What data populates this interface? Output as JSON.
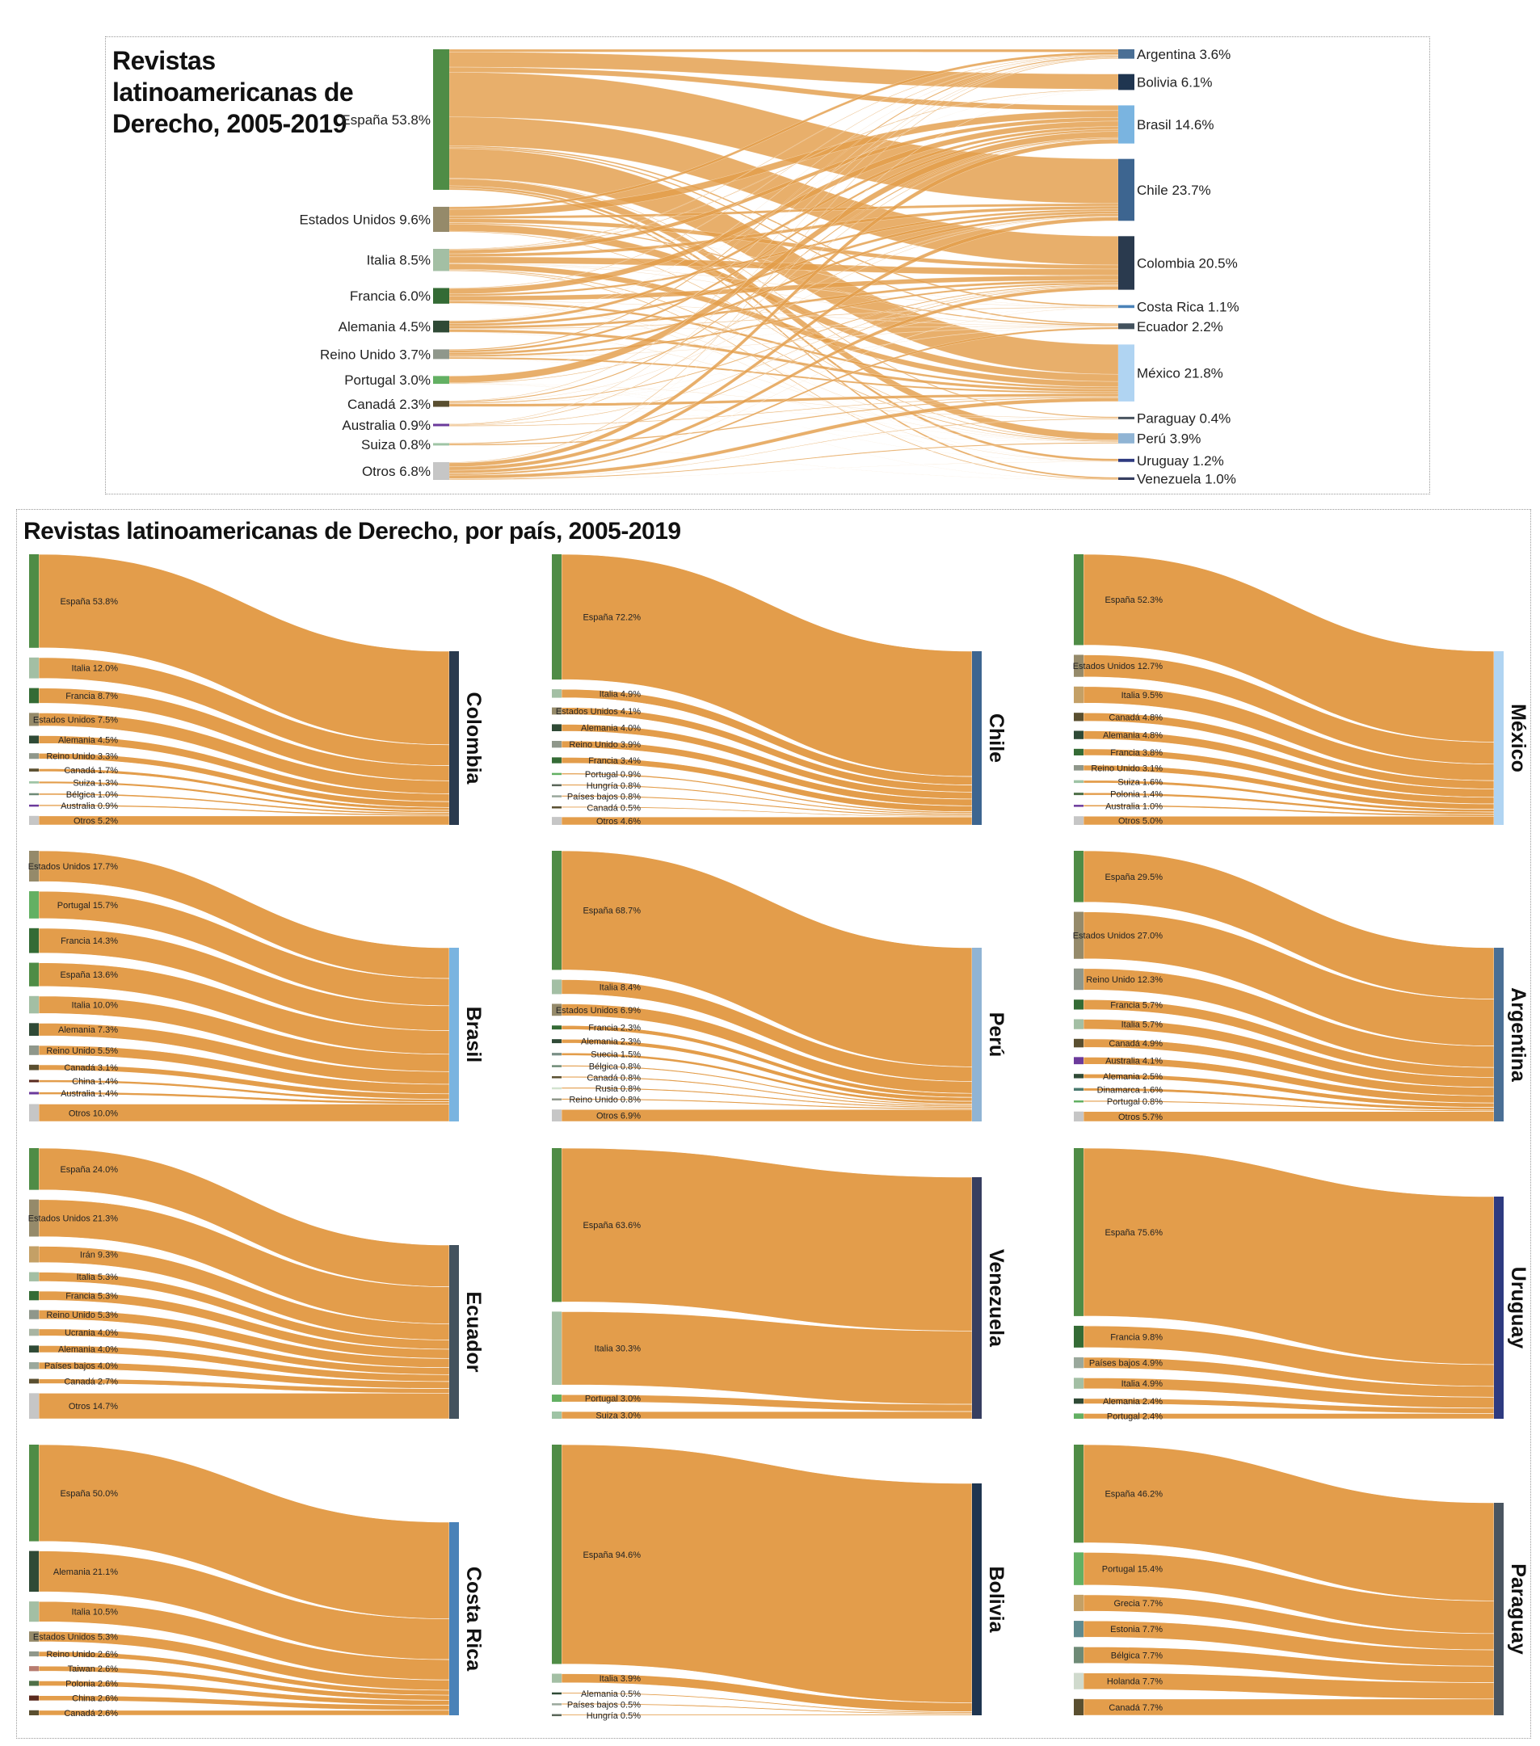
{
  "overview": {
    "title": "Revistas latinoamericanas de Derecho, 2005-2019",
    "sources": [
      {
        "name": "España",
        "value": 53.8
      },
      {
        "name": "Estados Unidos",
        "value": 9.6
      },
      {
        "name": "Italia",
        "value": 8.5
      },
      {
        "name": "Francia",
        "value": 6.0
      },
      {
        "name": "Alemania",
        "value": 4.5
      },
      {
        "name": "Reino Unido",
        "value": 3.7
      },
      {
        "name": "Portugal",
        "value": 3.0
      },
      {
        "name": "Canadá",
        "value": 2.3
      },
      {
        "name": "Australia",
        "value": 0.9
      },
      {
        "name": "Suiza",
        "value": 0.8
      },
      {
        "name": "Otros",
        "value": 6.8
      }
    ],
    "targets": [
      {
        "name": "Argentina",
        "value": 3.6
      },
      {
        "name": "Bolivia",
        "value": 6.1
      },
      {
        "name": "Brasil",
        "value": 14.6
      },
      {
        "name": "Chile",
        "value": 23.7
      },
      {
        "name": "Colombia",
        "value": 20.5
      },
      {
        "name": "Costa Rica",
        "value": 1.1
      },
      {
        "name": "Ecuador",
        "value": 2.2
      },
      {
        "name": "México",
        "value": 21.8
      },
      {
        "name": "Paraguay",
        "value": 0.4
      },
      {
        "name": "Perú",
        "value": 3.9
      },
      {
        "name": "Uruguay",
        "value": 1.2
      },
      {
        "name": "Venezuela",
        "value": 1.0
      }
    ]
  },
  "grid_title": "Revistas latinoamericanas de Derecho, por país, 2005-2019",
  "link_color": "#e39d4b",
  "source_colors": {
    "España": "#4f8c46",
    "Estados Unidos": "#958a6a",
    "Italia": "#a3bfa4",
    "Francia": "#346b35",
    "Alemania": "#2f4a36",
    "Reino Unido": "#8f978b",
    "Portugal": "#63b063",
    "Canadá": "#5a4f30",
    "Australia": "#6b3a9b",
    "Suiza": "#9fc4a5",
    "Otros": "#c6c6c6",
    "Bélgica": "#6e8a76",
    "Hungría": "#5a6659",
    "Países bajos": "#9aa89c",
    "Polonia": "#4f7048",
    "China": "#5a2a1e",
    "Suecia": "#7a8f86",
    "Rusia": "#d3e3cf",
    "Dinamarca": "#4b7a70",
    "Irán": "#c4a066",
    "Ucrania": "#a8b4a2",
    "Taiwan": "#b77c70",
    "Grecia": "#c4a066",
    "Estonia": "#5f8a8e",
    "Holanda": "#d0dacd"
  },
  "target_colors": {
    "Argentina": "#4a6f95",
    "Bolivia": "#1f3550",
    "Brasil": "#7ab4e0",
    "Chile": "#3d6590",
    "Colombia": "#2a3a4e",
    "Costa Rica": "#4a82b8",
    "Ecuador": "#43525e",
    "México": "#b0d4f2",
    "Paraguay": "#4a5560",
    "Perú": "#90b4d4",
    "Uruguay": "#2e3a80",
    "Venezuela": "#363e60"
  },
  "countries": [
    {
      "name": "Colombia",
      "sources": [
        {
          "name": "España",
          "value": 53.8
        },
        {
          "name": "Italia",
          "value": 12.0
        },
        {
          "name": "Francia",
          "value": 8.7
        },
        {
          "name": "Estados Unidos",
          "value": 7.5
        },
        {
          "name": "Alemania",
          "value": 4.5
        },
        {
          "name": "Reino Unido",
          "value": 3.3
        },
        {
          "name": "Canadá",
          "value": 1.7
        },
        {
          "name": "Suiza",
          "value": 1.3
        },
        {
          "name": "Bélgica",
          "value": 1.0
        },
        {
          "name": "Australia",
          "value": 0.9
        },
        {
          "name": "Otros",
          "value": 5.2
        }
      ]
    },
    {
      "name": "Chile",
      "sources": [
        {
          "name": "España",
          "value": 72.2
        },
        {
          "name": "Italia",
          "value": 4.9
        },
        {
          "name": "Estados Unidos",
          "value": 4.1
        },
        {
          "name": "Alemania",
          "value": 4.0
        },
        {
          "name": "Reino Unido",
          "value": 3.9
        },
        {
          "name": "Francia",
          "value": 3.4
        },
        {
          "name": "Portugal",
          "value": 0.9
        },
        {
          "name": "Hungría",
          "value": 0.8
        },
        {
          "name": "Países bajos",
          "value": 0.8
        },
        {
          "name": "Canadá",
          "value": 0.5
        },
        {
          "name": "Otros",
          "value": 4.6
        }
      ]
    },
    {
      "name": "México",
      "sources": [
        {
          "name": "España",
          "value": 52.3
        },
        {
          "name": "Estados Unidos",
          "value": 12.7
        },
        {
          "name": "Italia",
          "value": 9.5,
          "color": "#c4a066"
        },
        {
          "name": "Canadá",
          "value": 4.8
        },
        {
          "name": "Alemania",
          "value": 4.8
        },
        {
          "name": "Francia",
          "value": 3.8
        },
        {
          "name": "Reino Unido",
          "value": 3.1
        },
        {
          "name": "Suiza",
          "value": 1.6
        },
        {
          "name": "Polonia",
          "value": 1.4
        },
        {
          "name": "Australia",
          "value": 1.0
        },
        {
          "name": "Otros",
          "value": 5.0
        }
      ]
    },
    {
      "name": "Brasil",
      "sources": [
        {
          "name": "Estados Unidos",
          "value": 17.7
        },
        {
          "name": "Portugal",
          "value": 15.7
        },
        {
          "name": "Francia",
          "value": 14.3
        },
        {
          "name": "España",
          "value": 13.6
        },
        {
          "name": "Italia",
          "value": 10.0
        },
        {
          "name": "Alemania",
          "value": 7.3
        },
        {
          "name": "Reino Unido",
          "value": 5.5
        },
        {
          "name": "Canadá",
          "value": 3.1
        },
        {
          "name": "China",
          "value": 1.4
        },
        {
          "name": "Australia",
          "value": 1.4
        },
        {
          "name": "Otros",
          "value": 10.0
        }
      ]
    },
    {
      "name": "Perú",
      "sources": [
        {
          "name": "España",
          "value": 68.7
        },
        {
          "name": "Italia",
          "value": 8.4
        },
        {
          "name": "Estados Unidos",
          "value": 6.9
        },
        {
          "name": "Francia",
          "value": 2.3
        },
        {
          "name": "Alemania",
          "value": 2.3
        },
        {
          "name": "Suecia",
          "value": 1.5
        },
        {
          "name": "Bélgica",
          "value": 0.8
        },
        {
          "name": "Canadá",
          "value": 0.8
        },
        {
          "name": "Rusia",
          "value": 0.8
        },
        {
          "name": "Reino Unido",
          "value": 0.8
        },
        {
          "name": "Otros",
          "value": 6.9
        }
      ]
    },
    {
      "name": "Argentina",
      "sources": [
        {
          "name": "España",
          "value": 29.5
        },
        {
          "name": "Estados Unidos",
          "value": 27.0
        },
        {
          "name": "Reino Unido",
          "value": 12.3
        },
        {
          "name": "Francia",
          "value": 5.7
        },
        {
          "name": "Italia",
          "value": 5.7
        },
        {
          "name": "Canadá",
          "value": 4.9
        },
        {
          "name": "Australia",
          "value": 4.1
        },
        {
          "name": "Alemania",
          "value": 2.5
        },
        {
          "name": "Dinamarca",
          "value": 1.6
        },
        {
          "name": "Portugal",
          "value": 0.8
        },
        {
          "name": "Otros",
          "value": 5.7
        }
      ]
    },
    {
      "name": "Ecuador",
      "sources": [
        {
          "name": "España",
          "value": 24.0
        },
        {
          "name": "Estados Unidos",
          "value": 21.3
        },
        {
          "name": "Irán",
          "value": 9.3
        },
        {
          "name": "Italia",
          "value": 5.3
        },
        {
          "name": "Francia",
          "value": 5.3
        },
        {
          "name": "Reino Unido",
          "value": 5.3
        },
        {
          "name": "Ucrania",
          "value": 4.0
        },
        {
          "name": "Alemania",
          "value": 4.0
        },
        {
          "name": "Países bajos",
          "value": 4.0
        },
        {
          "name": "Canadá",
          "value": 2.7
        },
        {
          "name": "Otros",
          "value": 14.7
        }
      ]
    },
    {
      "name": "Venezuela",
      "sources": [
        {
          "name": "España",
          "value": 63.6
        },
        {
          "name": "Italia",
          "value": 30.3
        },
        {
          "name": "Portugal",
          "value": 3.0
        },
        {
          "name": "Suiza",
          "value": 3.0
        }
      ]
    },
    {
      "name": "Uruguay",
      "sources": [
        {
          "name": "España",
          "value": 75.6
        },
        {
          "name": "Francia",
          "value": 9.8
        },
        {
          "name": "Países bajos",
          "value": 4.9
        },
        {
          "name": "Italia",
          "value": 4.9
        },
        {
          "name": "Alemania",
          "value": 2.4
        },
        {
          "name": "Portugal",
          "value": 2.4
        }
      ]
    },
    {
      "name": "Costa Rica",
      "sources": [
        {
          "name": "España",
          "value": 50.0
        },
        {
          "name": "Alemania",
          "value": 21.1
        },
        {
          "name": "Italia",
          "value": 10.5
        },
        {
          "name": "Estados Unidos",
          "value": 5.3
        },
        {
          "name": "Reino Unido",
          "value": 2.6
        },
        {
          "name": "Taiwan",
          "value": 2.6
        },
        {
          "name": "Polonia",
          "value": 2.6
        },
        {
          "name": "China",
          "value": 2.6
        },
        {
          "name": "Canadá",
          "value": 2.6
        }
      ]
    },
    {
      "name": "Bolivia",
      "sources": [
        {
          "name": "España",
          "value": 94.6
        },
        {
          "name": "Italia",
          "value": 3.9
        },
        {
          "name": "Alemania",
          "value": 0.5
        },
        {
          "name": "Países bajos",
          "value": 0.5
        },
        {
          "name": "Hungría",
          "value": 0.5
        }
      ]
    },
    {
      "name": "Paraguay",
      "sources": [
        {
          "name": "España",
          "value": 46.2
        },
        {
          "name": "Portugal",
          "value": 15.4
        },
        {
          "name": "Grecia",
          "value": 7.7
        },
        {
          "name": "Estonia",
          "value": 7.7
        },
        {
          "name": "Bélgica",
          "value": 7.7
        },
        {
          "name": "Holanda",
          "value": 7.7
        },
        {
          "name": "Canadá",
          "value": 7.7
        }
      ]
    }
  ],
  "chart_data": {
    "type": "sankey",
    "unit": "%",
    "note_source": "overview and countries"
  }
}
